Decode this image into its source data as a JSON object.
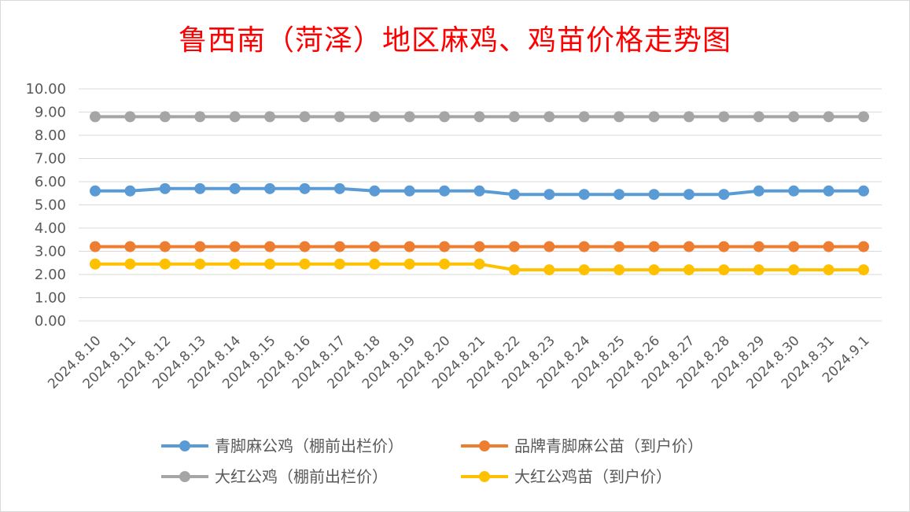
{
  "chart_data": {
    "type": "line",
    "title": "鲁西南（菏泽）地区麻鸡、鸡苗价格走势图",
    "y_tick_labels": [
      "0.00",
      "1.00",
      "2.00",
      "3.00",
      "4.00",
      "5.00",
      "6.00",
      "7.00",
      "8.00",
      "9.00",
      "10.00"
    ],
    "ylim": [
      0,
      10
    ],
    "grid": true,
    "legend_position": "bottom",
    "categories": [
      "2024.8.10",
      "2024.8.11",
      "2024.8.12",
      "2024.8.13",
      "2024.8.14",
      "2024.8.15",
      "2024.8.16",
      "2024.8.17",
      "2024.8.18",
      "2024.8.19",
      "2024.8.20",
      "2024.8.21",
      "2024.8.22",
      "2024.8.23",
      "2024.8.24",
      "2024.8.25",
      "2024.8.26",
      "2024.8.27",
      "2024.8.28",
      "2024.8.29",
      "2024.8.30",
      "2024.8.31",
      "2024.9.1"
    ],
    "series": [
      {
        "name": "青脚麻公鸡（棚前出栏价）",
        "color": "#5b9bd5",
        "values": [
          5.6,
          5.6,
          5.7,
          5.7,
          5.7,
          5.7,
          5.7,
          5.7,
          5.6,
          5.6,
          5.6,
          5.6,
          5.45,
          5.45,
          5.45,
          5.45,
          5.45,
          5.45,
          5.45,
          5.6,
          5.6,
          5.6,
          5.6
        ]
      },
      {
        "name": "品牌青脚麻公苗（到户价）",
        "color": "#ed7d31",
        "values": [
          3.2,
          3.2,
          3.2,
          3.2,
          3.2,
          3.2,
          3.2,
          3.2,
          3.2,
          3.2,
          3.2,
          3.2,
          3.2,
          3.2,
          3.2,
          3.2,
          3.2,
          3.2,
          3.2,
          3.2,
          3.2,
          3.2,
          3.2
        ]
      },
      {
        "name": "大红公鸡（棚前出栏价）",
        "color": "#a5a5a5",
        "values": [
          8.8,
          8.8,
          8.8,
          8.8,
          8.8,
          8.8,
          8.8,
          8.8,
          8.8,
          8.8,
          8.8,
          8.8,
          8.8,
          8.8,
          8.8,
          8.8,
          8.8,
          8.8,
          8.8,
          8.8,
          8.8,
          8.8,
          8.8
        ]
      },
      {
        "name": "大红公鸡苗（到户价）",
        "color": "#ffc000",
        "values": [
          2.45,
          2.45,
          2.45,
          2.45,
          2.45,
          2.45,
          2.45,
          2.45,
          2.45,
          2.45,
          2.45,
          2.45,
          2.2,
          2.2,
          2.2,
          2.2,
          2.2,
          2.2,
          2.2,
          2.2,
          2.2,
          2.2,
          2.2
        ]
      }
    ]
  }
}
